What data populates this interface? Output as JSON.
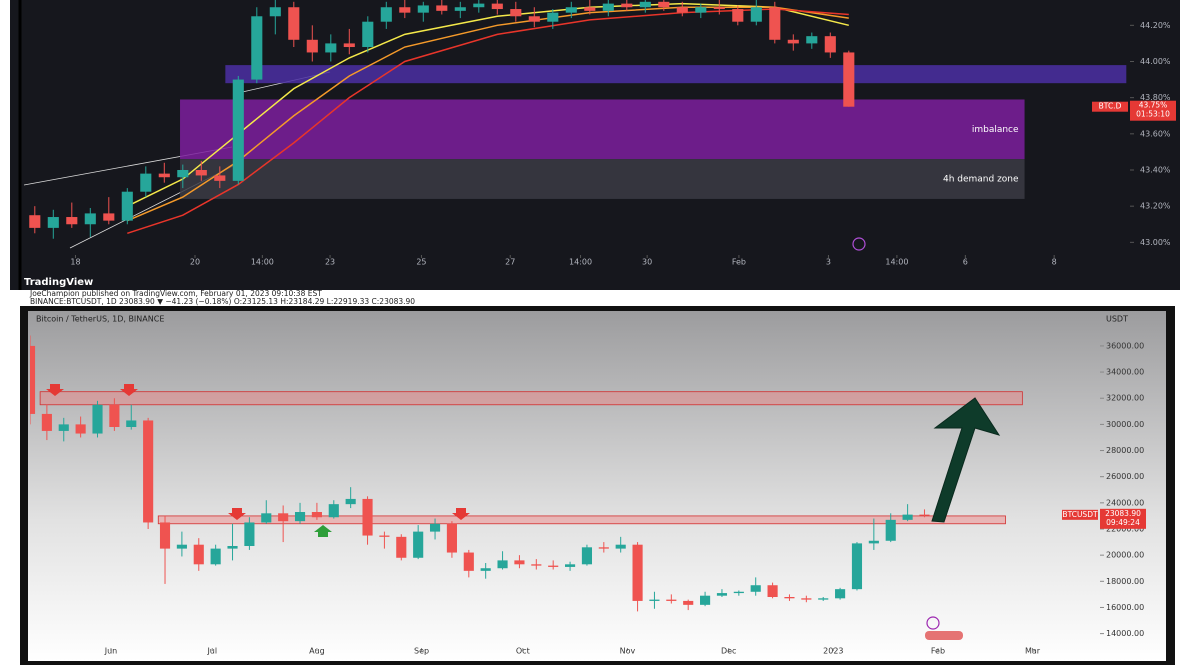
{
  "chart_data": [
    {
      "type": "candlestick",
      "x": [
        0,
        1,
        2,
        3,
        4,
        5,
        6,
        7,
        8,
        9,
        10,
        11,
        12,
        13,
        14,
        15,
        16,
        17,
        18,
        19,
        20,
        21,
        22,
        23,
        24,
        25,
        26,
        27,
        28,
        29,
        30,
        31,
        32,
        33,
        34,
        35,
        36,
        37,
        38,
        39,
        40,
        41,
        42,
        43,
        44
      ],
      "candles": [
        [
          43.15,
          43.2,
          43.05,
          43.08
        ],
        [
          43.08,
          43.18,
          43.02,
          43.14
        ],
        [
          43.14,
          43.22,
          43.08,
          43.1
        ],
        [
          43.1,
          43.19,
          43.03,
          43.16
        ],
        [
          43.16,
          43.25,
          43.1,
          43.12
        ],
        [
          43.12,
          43.3,
          43.1,
          43.28
        ],
        [
          43.28,
          43.42,
          43.25,
          43.38
        ],
        [
          43.38,
          43.44,
          43.33,
          43.36
        ],
        [
          43.36,
          43.43,
          43.3,
          43.4
        ],
        [
          43.4,
          43.45,
          43.34,
          43.37
        ],
        [
          43.37,
          43.42,
          43.3,
          43.34
        ],
        [
          43.34,
          43.92,
          43.32,
          43.9
        ],
        [
          43.9,
          44.3,
          43.88,
          44.25
        ],
        [
          44.25,
          44.34,
          44.15,
          44.3
        ],
        [
          44.3,
          44.33,
          44.08,
          44.12
        ],
        [
          44.12,
          44.2,
          44.0,
          44.05
        ],
        [
          44.05,
          44.15,
          44.0,
          44.1
        ],
        [
          44.1,
          44.18,
          44.04,
          44.08
        ],
        [
          44.08,
          44.25,
          44.05,
          44.22
        ],
        [
          44.22,
          44.33,
          44.18,
          44.3
        ],
        [
          44.3,
          44.34,
          44.24,
          44.27
        ],
        [
          44.27,
          44.33,
          44.22,
          44.31
        ],
        [
          44.31,
          44.34,
          44.26,
          44.28
        ],
        [
          44.28,
          44.33,
          44.24,
          44.3
        ],
        [
          44.3,
          44.34,
          44.27,
          44.32
        ],
        [
          44.32,
          44.34,
          44.26,
          44.29
        ],
        [
          44.29,
          44.33,
          44.22,
          44.25
        ],
        [
          44.25,
          44.3,
          44.19,
          44.22
        ],
        [
          44.22,
          44.29,
          44.18,
          44.27
        ],
        [
          44.27,
          44.33,
          44.24,
          44.3
        ],
        [
          44.3,
          44.34,
          44.26,
          44.28
        ],
        [
          44.28,
          44.34,
          44.25,
          44.32
        ],
        [
          44.32,
          44.34,
          44.28,
          44.3
        ],
        [
          44.3,
          44.34,
          44.27,
          44.33
        ],
        [
          44.33,
          44.34,
          44.28,
          44.3
        ],
        [
          44.3,
          44.33,
          44.25,
          44.27
        ],
        [
          44.27,
          44.32,
          44.24,
          44.3
        ],
        [
          44.3,
          44.34,
          44.26,
          44.29
        ],
        [
          44.29,
          44.31,
          44.2,
          44.22
        ],
        [
          44.22,
          44.34,
          44.2,
          44.3
        ],
        [
          44.3,
          44.33,
          44.1,
          44.12
        ],
        [
          44.12,
          44.15,
          44.06,
          44.1
        ],
        [
          44.1,
          44.16,
          44.07,
          44.14
        ],
        [
          44.14,
          44.16,
          44.02,
          44.05
        ],
        [
          44.05,
          44.06,
          43.75,
          43.75
        ]
      ],
      "up_color": "#26a69a",
      "down_color": "#ef5350",
      "xlim": [
        -0.8,
        59.2
      ],
      "ylim": [
        42.93,
        44.34
      ],
      "xticks": [
        {
          "value": 2.2,
          "label": "18"
        },
        {
          "value": 8.66,
          "label": "20"
        },
        {
          "value": 12.3,
          "label": "14:00"
        },
        {
          "value": 15.96,
          "label": "23"
        },
        {
          "value": 20.9,
          "label": "25"
        },
        {
          "value": 25.7,
          "label": "27"
        },
        {
          "value": 29.5,
          "label": "14:00"
        },
        {
          "value": 33.1,
          "label": "30"
        },
        {
          "value": 38.06,
          "label": "Feb"
        },
        {
          "value": 42.9,
          "label": "3"
        },
        {
          "value": 46.6,
          "label": "14:00"
        },
        {
          "value": 50.3,
          "label": "6"
        },
        {
          "value": 55.1,
          "label": "8"
        }
      ],
      "yticks": [
        {
          "value": 43.0,
          "label": "43.00%"
        },
        {
          "value": 43.2,
          "label": "43.20%"
        },
        {
          "value": 43.4,
          "label": "43.40%"
        },
        {
          "value": 43.6,
          "label": "43.60%"
        },
        {
          "value": 43.8,
          "label": "43.80%"
        },
        {
          "value": 44.0,
          "label": "44.00%"
        },
        {
          "value": 44.2,
          "label": "44.20%"
        }
      ],
      "lines": [
        {
          "color": "#f5e94a",
          "x": [
            5,
            8,
            11,
            14,
            17,
            20,
            25,
            30,
            35,
            40,
            44
          ],
          "values": [
            43.2,
            43.35,
            43.6,
            43.85,
            44.02,
            44.15,
            44.25,
            44.3,
            44.32,
            44.3,
            44.2
          ]
        },
        {
          "color": "#f59a2a",
          "x": [
            5,
            8,
            11,
            14,
            17,
            20,
            25,
            30,
            35,
            40,
            44
          ],
          "values": [
            43.12,
            43.25,
            43.45,
            43.7,
            43.92,
            44.08,
            44.2,
            44.27,
            44.3,
            44.3,
            44.24
          ]
        },
        {
          "color": "#e8352a",
          "x": [
            5,
            8,
            11,
            14,
            17,
            20,
            25,
            30,
            35,
            40,
            44
          ],
          "values": [
            43.05,
            43.15,
            43.32,
            43.55,
            43.8,
            44.0,
            44.15,
            44.23,
            44.27,
            44.29,
            44.26
          ]
        }
      ],
      "zones": [
        {
          "x": [
            10.3,
            59.0
          ],
          "y": [
            43.88,
            43.98
          ],
          "color": "#4b2fa3"
        },
        {
          "label": "imbalance",
          "x": [
            7.85,
            53.5
          ],
          "y": [
            43.46,
            43.79
          ],
          "color": "#7d1f9e"
        },
        {
          "label": "4h demand zone",
          "x": [
            7.85,
            53.5
          ],
          "y": [
            43.24,
            43.46
          ],
          "color": "#3b3b44"
        }
      ],
      "price_tag": {
        "symbol": "BTC.D",
        "price": "43.75%",
        "countdown": "01:53:10"
      }
    },
    {
      "type": "candlestick",
      "title": "Bitcoin / TetherUS, 1D, BINANCE",
      "y_unit": "USDT",
      "x": [
        0,
        5,
        10,
        15,
        20,
        25,
        30,
        35,
        40,
        45,
        50,
        55,
        60,
        65,
        70,
        75,
        80,
        85,
        90,
        95,
        100,
        105,
        110,
        115,
        120,
        125,
        130,
        135,
        140,
        145,
        150,
        155,
        160,
        165,
        170,
        175,
        180,
        185,
        190,
        195,
        200,
        205,
        210,
        215,
        220,
        225,
        230,
        235,
        240,
        245,
        250,
        255,
        260,
        265
      ],
      "candles": [
        [
          36000,
          36800,
          30000,
          30800
        ],
        [
          30800,
          31500,
          28800,
          29500
        ],
        [
          29500,
          30500,
          28700,
          30000
        ],
        [
          30000,
          30600,
          29000,
          29300
        ],
        [
          29300,
          31800,
          29000,
          31500
        ],
        [
          31500,
          32000,
          29500,
          29800
        ],
        [
          29800,
          31500,
          29600,
          30300
        ],
        [
          30300,
          30500,
          22000,
          22500
        ],
        [
          22500,
          23000,
          17800,
          20500
        ],
        [
          20500,
          21800,
          19900,
          20800
        ],
        [
          20800,
          21300,
          18800,
          19300
        ],
        [
          19300,
          20800,
          19200,
          20500
        ],
        [
          20500,
          22400,
          19600,
          20700
        ],
        [
          20700,
          22900,
          20400,
          22500
        ],
        [
          22500,
          24200,
          22400,
          23200
        ],
        [
          23200,
          23800,
          21000,
          22600
        ],
        [
          22600,
          24000,
          22400,
          23300
        ],
        [
          23300,
          24000,
          22700,
          22900
        ],
        [
          22900,
          24200,
          22800,
          23900
        ],
        [
          23900,
          25200,
          23600,
          24300
        ],
        [
          24300,
          24500,
          20800,
          21500
        ],
        [
          21500,
          21800,
          20500,
          21400
        ],
        [
          21400,
          21600,
          19600,
          19800
        ],
        [
          19800,
          22300,
          19700,
          21800
        ],
        [
          21800,
          22800,
          21200,
          22400
        ],
        [
          22400,
          22600,
          19800,
          20200
        ],
        [
          20200,
          20400,
          18300,
          18800
        ],
        [
          18800,
          19400,
          18200,
          19000
        ],
        [
          19000,
          20300,
          18900,
          19600
        ],
        [
          19600,
          20000,
          19000,
          19300
        ],
        [
          19300,
          19700,
          18900,
          19200
        ],
        [
          19200,
          19600,
          18900,
          19100
        ],
        [
          19100,
          19500,
          18800,
          19300
        ],
        [
          19300,
          20800,
          19200,
          20600
        ],
        [
          20600,
          21000,
          20200,
          20500
        ],
        [
          20500,
          21400,
          20200,
          20800
        ],
        [
          20800,
          21000,
          15700,
          16500
        ],
        [
          16500,
          17200,
          15900,
          16600
        ],
        [
          16600,
          17000,
          16300,
          16500
        ],
        [
          16500,
          16600,
          15800,
          16200
        ],
        [
          16200,
          17200,
          16100,
          16900
        ],
        [
          16900,
          17400,
          16800,
          17100
        ],
        [
          17100,
          17300,
          16900,
          17200
        ],
        [
          17200,
          18300,
          16900,
          17700
        ],
        [
          17700,
          17900,
          16700,
          16800
        ],
        [
          16800,
          17000,
          16500,
          16700
        ],
        [
          16700,
          16900,
          16400,
          16600
        ],
        [
          16600,
          16800,
          16500,
          16700
        ],
        [
          16700,
          17500,
          16600,
          17400
        ],
        [
          17400,
          21000,
          17300,
          20900
        ],
        [
          20900,
          22800,
          20400,
          21100
        ],
        [
          21100,
          23200,
          21000,
          22700
        ],
        [
          22700,
          23900,
          22600,
          23100
        ],
        [
          23100,
          23500,
          22900,
          23083.9
        ]
      ],
      "up_color": "#26a69a",
      "down_color": "#ef5350",
      "xlim": [
        0,
        317
      ],
      "ylim": [
        12900,
        37600
      ],
      "xticks": [
        {
          "value": 24,
          "label": "Jun"
        },
        {
          "value": 54,
          "label": "Jul"
        },
        {
          "value": 85,
          "label": "Aug"
        },
        {
          "value": 116,
          "label": "Sep"
        },
        {
          "value": 146,
          "label": "Oct"
        },
        {
          "value": 177,
          "label": "Nov"
        },
        {
          "value": 207,
          "label": "Dec"
        },
        {
          "value": 238,
          "label": "2023"
        },
        {
          "value": 269,
          "label": "Feb"
        },
        {
          "value": 297,
          "label": "Mar"
        }
      ],
      "yticks": [
        {
          "value": 14000,
          "label": "14000.00"
        },
        {
          "value": 16000,
          "label": "16000.00"
        },
        {
          "value": 18000,
          "label": "18000.00"
        },
        {
          "value": 20000,
          "label": "20000.00"
        },
        {
          "value": 22000,
          "label": "22000.00"
        },
        {
          "value": 24000,
          "label": "24000.00"
        },
        {
          "value": 26000,
          "label": "26000.00"
        },
        {
          "value": 28000,
          "label": "28000.00"
        },
        {
          "value": 30000,
          "label": "30000.00"
        },
        {
          "value": 32000,
          "label": "32000.00"
        },
        {
          "value": 34000,
          "label": "34000.00"
        },
        {
          "value": 36000,
          "label": "36000.00"
        }
      ],
      "lines": [],
      "zones": [
        {
          "x": [
            3,
            294
          ],
          "y": [
            31500,
            32500
          ],
          "color": "#f08080"
        },
        {
          "x": [
            38,
            289
          ],
          "y": [
            22400,
            23000
          ],
          "color": "#f08080"
        }
      ],
      "price_tag": {
        "symbol": "BTCUSDT",
        "price": "23083.90",
        "countdown": "09:49:24"
      }
    }
  ],
  "footer": {
    "brand": "TradingView",
    "publisher": "JoeChampion published on TradingView.com, February 01, 2023 09:10:38 EST",
    "quote": "BINANCE:BTCUSDT, 1D 23083.90 ▼ −41.23 (−0.18%) O:23125.13 H:23184.29 L:22919.33 C:23083.90"
  }
}
